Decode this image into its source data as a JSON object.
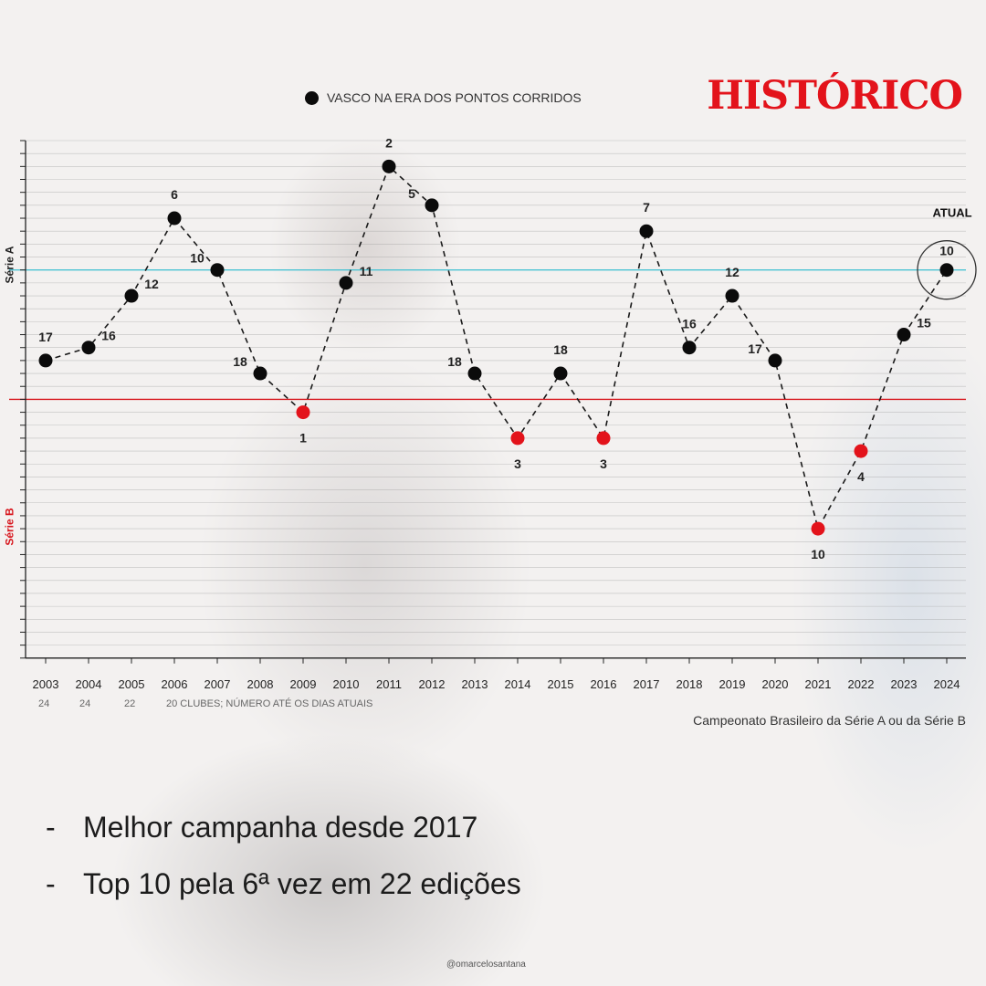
{
  "header": {
    "title": "HISTÓRICO",
    "legend_label": "VASCO NA ERA DOS PONTOS CORRIDOS"
  },
  "zones": {
    "serie_a": "Série A",
    "serie_b": "Série B"
  },
  "notes": {
    "clubs_2003": "24",
    "clubs_2004": "24",
    "clubs_2005": "22",
    "clubs_now": "20 CLUBES; NÚMERO ATÉ OS DIAS ATUAIS",
    "caption": "Campeonato Brasileiro da Série A ou da Série B"
  },
  "bullets": {
    "b1": "Melhor campanha desde 2017",
    "b2": "Top 10 pela 6ª vez em 22 edições",
    "dash": "-"
  },
  "credit": "@omarcelosantana",
  "colors": {
    "serie_a_point": "#0b0b0b",
    "serie_b_point": "#e3131b",
    "cutoff_top10": "#4cc3d3",
    "cutoff_relegation": "#d7141b",
    "title": "#e3131b"
  },
  "chart_data": {
    "type": "line",
    "title": "VASCO NA ERA DOS PONTOS CORRIDOS",
    "x": [
      "2003",
      "2004",
      "2005",
      "2006",
      "2007",
      "2008",
      "2009",
      "2010",
      "2011",
      "2012",
      "2013",
      "2014",
      "2015",
      "2016",
      "2017",
      "2018",
      "2019",
      "2020",
      "2021",
      "2022",
      "2023",
      "2024"
    ],
    "series": [
      {
        "name": "VASCO NA ERA DOS PONTOS CORRIDOS",
        "division": [
          "A",
          "A",
          "A",
          "A",
          "A",
          "A",
          "B",
          "A",
          "A",
          "A",
          "A",
          "B",
          "A",
          "B",
          "A",
          "A",
          "A",
          "A",
          "B",
          "B",
          "A",
          "A"
        ],
        "position": [
          17,
          16,
          12,
          6,
          10,
          18,
          1,
          11,
          2,
          5,
          18,
          3,
          18,
          3,
          7,
          16,
          12,
          17,
          10,
          4,
          15,
          10
        ],
        "y_scale": [
          17,
          16,
          12,
          6,
          10,
          18,
          21,
          11,
          2,
          5,
          18,
          23,
          18,
          23,
          7,
          16,
          12,
          17,
          30,
          24,
          15,
          10
        ]
      }
    ],
    "y_scale_note": "Série A positions 1–20 plotted as-is; Série B positions plotted as 20 + position",
    "ylim": [
      0,
      40
    ],
    "reference_lines": [
      {
        "label": "Top 10",
        "y_scale": 10,
        "color": "#4cc3d3"
      },
      {
        "label": "Série A / Série B",
        "y_scale": 20,
        "color": "#d7141b"
      }
    ],
    "annotations": [
      {
        "year": "2024",
        "text": "ATUAL"
      }
    ],
    "grid": true
  }
}
